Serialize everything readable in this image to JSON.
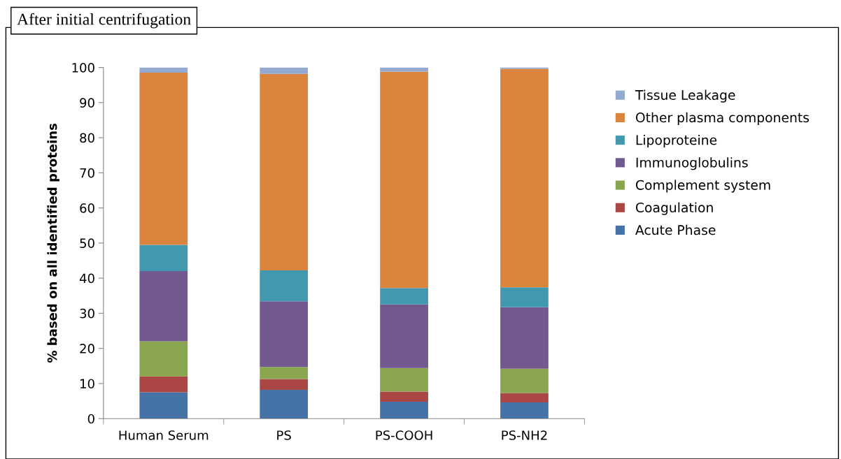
{
  "chart_data": {
    "type": "bar",
    "title": "After initial centrifugation",
    "ylabel": "% based on all identified proteins",
    "categories": [
      "Human Serum",
      "PS",
      "PS-COOH",
      "PS-NH2"
    ],
    "stacked": true,
    "ylim": [
      0,
      100
    ],
    "yticks": [
      0,
      10,
      20,
      30,
      40,
      50,
      60,
      70,
      80,
      90,
      100
    ],
    "grid": false,
    "legend": "right",
    "series": [
      {
        "name": "Acute Phase",
        "color": "#4572a7",
        "values": [
          7.5,
          8.2,
          4.8,
          4.6
        ]
      },
      {
        "name": "Coagulation",
        "color": "#aa4643",
        "values": [
          4.5,
          3.1,
          2.9,
          2.7
        ]
      },
      {
        "name": "Complement system",
        "color": "#89a54e",
        "values": [
          10,
          3.4,
          6.7,
          6.9
        ]
      },
      {
        "name": "Immunoglobulins",
        "color": "#71588f",
        "values": [
          20,
          18.7,
          18.1,
          17.5
        ]
      },
      {
        "name": "Lipoproteine",
        "color": "#4198af",
        "values": [
          7.5,
          8.8,
          4.7,
          5.7
        ]
      },
      {
        "name": "Other plasma components",
        "color": "#db843d",
        "values": [
          49,
          56,
          61.6,
          62.2
        ]
      },
      {
        "name": "Tissue Leakage",
        "color": "#93a9cf",
        "values": [
          1.5,
          1.8,
          1.2,
          0.4
        ]
      }
    ]
  }
}
